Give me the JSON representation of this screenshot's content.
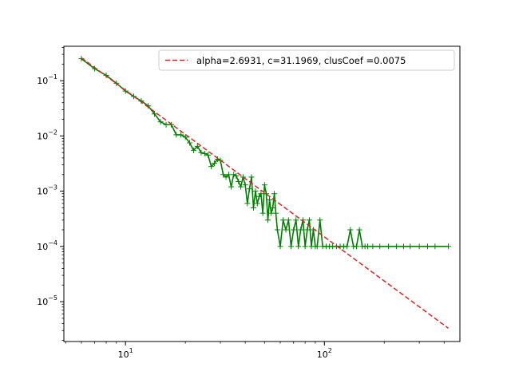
{
  "chart_data": {
    "type": "line",
    "title": "",
    "xlabel": "",
    "ylabel": "",
    "xscale": "log",
    "yscale": "log",
    "xlim": [
      4.9,
      480
    ],
    "ylim": [
      1.9e-06,
      0.42
    ],
    "x_major_ticks": [
      {
        "value": 10,
        "base": "10",
        "exp": "1"
      },
      {
        "value": 100,
        "base": "10",
        "exp": "2"
      }
    ],
    "y_major_ticks": [
      {
        "value": 0.1,
        "base": "10",
        "exp": "−1"
      },
      {
        "value": 0.01,
        "base": "10",
        "exp": "−2"
      },
      {
        "value": 0.001,
        "base": "10",
        "exp": "−3"
      },
      {
        "value": 0.0001,
        "base": "10",
        "exp": "−4"
      },
      {
        "value": 1e-05,
        "base": "10",
        "exp": "−5"
      }
    ],
    "grid": false,
    "legend_position": "top-right",
    "series": [
      {
        "name": "alpha=2.6931, c=31.1969, clusCoef =0.0075",
        "style": "dashed",
        "color": "#d62728",
        "x": [
          6,
          420
        ],
        "y": [
          0.26,
          3.3e-06
        ]
      },
      {
        "name": "",
        "style": "solid",
        "marker": "+",
        "color": "#008000",
        "x": [
          6,
          7,
          8,
          9,
          10,
          11,
          12,
          13,
          14,
          15,
          16,
          17,
          18,
          19,
          20,
          21,
          22,
          23,
          24,
          25,
          26,
          27,
          28,
          29,
          30,
          31,
          32,
          33,
          34,
          35,
          36,
          37,
          38,
          39,
          40,
          41,
          42,
          43,
          44,
          45,
          46,
          47,
          48,
          49,
          50,
          51,
          52,
          53,
          54,
          55,
          56,
          57,
          58,
          60,
          62,
          64,
          66,
          68,
          70,
          72,
          74,
          76,
          78,
          80,
          82,
          84,
          86,
          88,
          90,
          92,
          95,
          98,
          102,
          106,
          110,
          115,
          120,
          125,
          130,
          135,
          140,
          145,
          150,
          155,
          160,
          165,
          175,
          190,
          210,
          230,
          250,
          270,
          300,
          330,
          360,
          420
        ],
        "y": [
          0.25,
          0.165,
          0.125,
          0.09,
          0.065,
          0.052,
          0.043,
          0.035,
          0.025,
          0.018,
          0.016,
          0.016,
          0.0105,
          0.0105,
          0.0095,
          0.0075,
          0.0055,
          0.0065,
          0.005,
          0.0048,
          0.0045,
          0.0028,
          0.0032,
          0.0038,
          0.0036,
          0.002,
          0.0018,
          0.002,
          0.0012,
          0.002,
          0.0019,
          0.0015,
          0.0012,
          0.0018,
          0.0013,
          0.0006,
          0.0011,
          0.0018,
          0.0005,
          0.001,
          0.0006,
          0.0008,
          0.0009,
          0.0004,
          0.0013,
          0.0009,
          0.0003,
          0.0007,
          0.0004,
          0.0005,
          0.0009,
          0.0004,
          0.0002,
          0.0001,
          0.0003,
          0.0002,
          0.0003,
          0.0001,
          0.0002,
          0.0003,
          0.0001,
          0.0002,
          0.0003,
          0.0001,
          0.0002,
          0.0003,
          0.0001,
          0.0002,
          0.0001,
          0.0001,
          0.0003,
          0.0001,
          0.0001,
          0.0001,
          0.0001,
          0.0001,
          0.0001,
          0.0001,
          0.0001,
          0.0002,
          0.0001,
          0.0001,
          0.0002,
          0.0001,
          0.0001,
          0.0001,
          0.0001,
          0.0001,
          0.0001,
          0.0001,
          0.0001,
          0.0001,
          0.0001,
          0.0001,
          0.0001,
          0.0001
        ]
      }
    ]
  }
}
